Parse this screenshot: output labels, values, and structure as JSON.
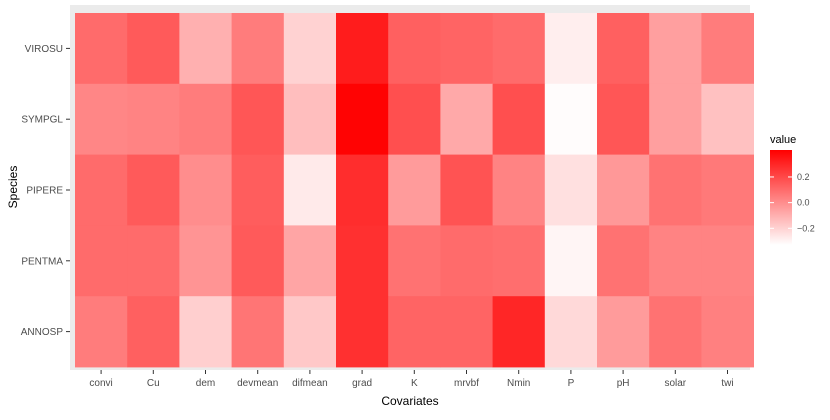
{
  "chart_data": {
    "type": "heatmap",
    "xlabel": "Covariates",
    "ylabel": "Species",
    "x_categories": [
      "convi",
      "Cu",
      "dem",
      "devmean",
      "difmean",
      "grad",
      "K",
      "mrvbf",
      "Nmin",
      "P",
      "pH",
      "solar",
      "twi"
    ],
    "y_categories": [
      "VIROSU",
      "SYMPGL",
      "PIPERE",
      "PENTMA",
      "ANNOSP"
    ],
    "values": [
      [
        0.1,
        0.15,
        -0.1,
        0.05,
        -0.2,
        0.33,
        0.13,
        0.12,
        0.1,
        -0.28,
        0.13,
        -0.05,
        0.05
      ],
      [
        0.02,
        0.03,
        0.05,
        0.16,
        -0.14,
        0.4,
        0.18,
        -0.08,
        0.18,
        -0.32,
        0.16,
        -0.05,
        -0.15
      ],
      [
        0.1,
        0.15,
        0.0,
        0.14,
        -0.27,
        0.28,
        -0.04,
        0.17,
        0.03,
        -0.24,
        -0.03,
        0.08,
        0.06
      ],
      [
        0.1,
        0.1,
        -0.02,
        0.15,
        -0.07,
        0.27,
        0.08,
        0.1,
        0.09,
        -0.3,
        0.08,
        0.03,
        0.03
      ],
      [
        0.05,
        0.13,
        -0.19,
        0.07,
        -0.17,
        0.27,
        0.12,
        0.12,
        0.3,
        -0.22,
        -0.04,
        0.08,
        0.04
      ]
    ],
    "color_scale": {
      "low": "#ffffff",
      "high": "#ff0000",
      "domain": [
        -0.33,
        0.41
      ]
    },
    "legend": {
      "title": "value",
      "ticks": [
        0.2,
        0.0,
        -0.2
      ],
      "tick_labels": [
        "0.2",
        "0.0",
        "−0.2"
      ],
      "position": "right"
    },
    "panel_background": "#ebebeb",
    "grid": false
  }
}
